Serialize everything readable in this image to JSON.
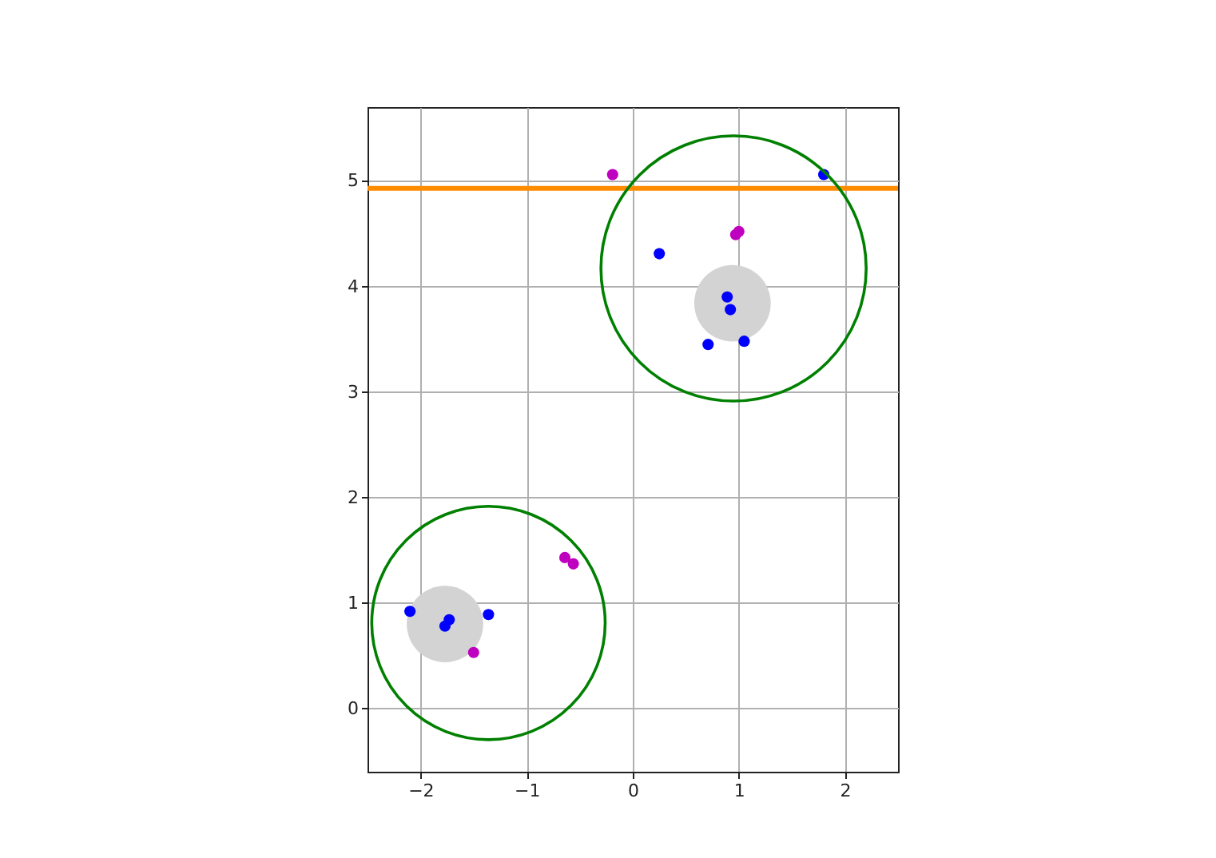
{
  "chart_data": {
    "type": "scatter",
    "grid": true,
    "xlim": [
      -2.5,
      2.5
    ],
    "ylim": [
      -0.6,
      5.7
    ],
    "xticks": [
      {
        "value": -2,
        "label": "−2"
      },
      {
        "value": -1,
        "label": "−1"
      },
      {
        "value": 0,
        "label": "0"
      },
      {
        "value": 1,
        "label": "1"
      },
      {
        "value": 2,
        "label": "2"
      }
    ],
    "yticks": [
      {
        "value": 0,
        "label": "0"
      },
      {
        "value": 1,
        "label": "1"
      },
      {
        "value": 2,
        "label": "2"
      },
      {
        "value": 3,
        "label": "3"
      },
      {
        "value": 4,
        "label": "4"
      },
      {
        "value": 5,
        "label": "5"
      }
    ],
    "series": [
      {
        "type": "bubble",
        "color": "#d3d3d3",
        "x": [
          0.94,
          -1.77
        ],
        "values": [
          3.84,
          0.8
        ],
        "sizes": [
          1,
          1
        ]
      },
      {
        "color": "#0000ff",
        "x": [
          0.25,
          0.89,
          0.92,
          0.71,
          1.05,
          1.8,
          -2.1,
          -1.77,
          -1.73,
          -1.36
        ],
        "values": [
          4.31,
          3.9,
          3.78,
          3.45,
          3.48,
          5.06,
          0.92,
          0.78,
          0.84,
          0.89
        ]
      },
      {
        "color": "#bf00bf",
        "x": [
          -0.19,
          1.0,
          0.97,
          -0.64,
          -0.56,
          -1.5
        ],
        "values": [
          5.06,
          4.52,
          4.49,
          1.43,
          1.37,
          0.53
        ]
      }
    ],
    "ref_lines": [
      {
        "axis": "y",
        "value": 4.93,
        "color": "#ff8c00"
      }
    ]
  }
}
